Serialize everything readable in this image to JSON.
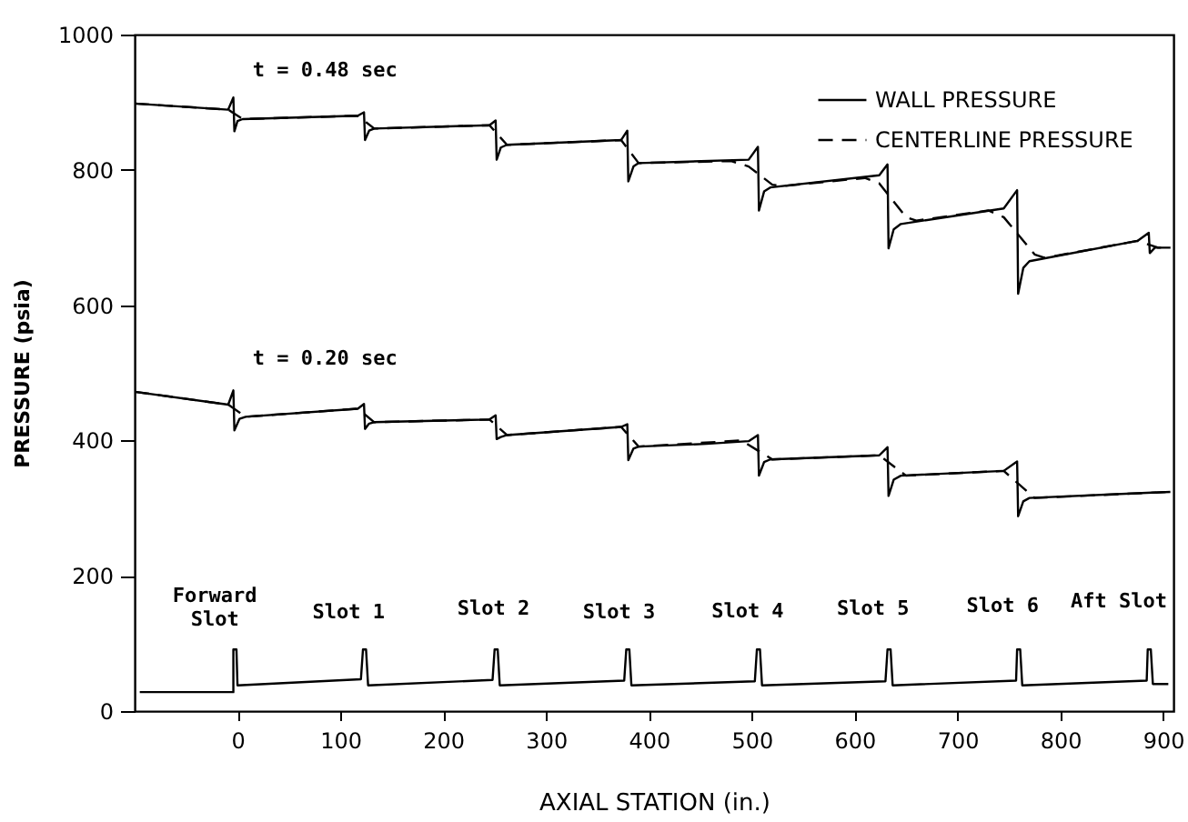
{
  "chart_data": {
    "type": "line",
    "xlabel": "AXIAL STATION  (in.)",
    "ylabel": "PRESSURE (psia)",
    "xlim": [
      -100,
      910
    ],
    "xticks": [
      0,
      100,
      200,
      300,
      400,
      500,
      600,
      700,
      800,
      900
    ],
    "ylim": [
      0,
      1000
    ],
    "yticks": [
      0,
      200,
      400,
      600,
      800,
      1000
    ],
    "grid": false,
    "legend": "top right",
    "marker": "none",
    "series": [
      {
        "name": "WALL PRESSURE",
        "color": "#000000",
        "line_style": "solid",
        "x": [
          -100,
          -9,
          -4,
          -3,
          0,
          5,
          117,
          123,
          124,
          128,
          133,
          245,
          251,
          252,
          256,
          262,
          373,
          379,
          380,
          385,
          390,
          497,
          506,
          507,
          512,
          518,
          624,
          632,
          633,
          638,
          645,
          745,
          758,
          759,
          764,
          770,
          875,
          886,
          887,
          892,
          907
        ],
        "values": [
          898,
          889,
          907,
          857,
          872,
          875,
          880,
          885,
          844,
          858,
          861,
          866,
          873,
          815,
          833,
          837,
          844,
          858,
          783,
          805,
          810,
          815,
          834,
          740,
          768,
          774,
          792,
          808,
          684,
          712,
          720,
          743,
          770,
          617,
          655,
          665,
          695,
          707,
          677,
          685,
          685
        ]
      },
      {
        "name": "CENTERLINE PRESSURE",
        "color": "#000000",
        "line_style": "dashed",
        "x": [
          -100,
          -9,
          5,
          117,
          133,
          245,
          262,
          373,
          390,
          480,
          497,
          520,
          530,
          610,
          624,
          650,
          660,
          730,
          745,
          775,
          785,
          875,
          895,
          907
        ],
        "values": [
          898,
          889,
          875,
          880,
          861,
          866,
          837,
          844,
          810,
          813,
          805,
          778,
          776,
          788,
          780,
          730,
          725,
          740,
          730,
          675,
          670,
          695,
          685,
          685
        ]
      },
      {
        "color": "#000000",
        "line_style": "solid",
        "x": [
          -100,
          -9,
          -4,
          -3,
          2,
          8,
          117,
          123,
          124,
          128,
          133,
          245,
          251,
          252,
          256,
          262,
          373,
          379,
          380,
          385,
          390,
          456,
          497,
          506,
          507,
          512,
          518,
          624,
          632,
          633,
          638,
          645,
          745,
          758,
          759,
          764,
          770,
          907
        ],
        "values": [
          472,
          453,
          474,
          415,
          432,
          435,
          447,
          454,
          417,
          425,
          427,
          431,
          437,
          402,
          405,
          408,
          420,
          424,
          371,
          388,
          391,
          395,
          399,
          408,
          348,
          368,
          372,
          378,
          390,
          318,
          342,
          348,
          355,
          369,
          288,
          310,
          315,
          324
        ]
      },
      {
        "color": "#000000",
        "line_style": "dashed",
        "x": [
          -100,
          -9,
          8,
          117,
          133,
          245,
          262,
          373,
          390,
          490,
          520,
          624,
          650,
          745,
          775,
          907
        ],
        "values": [
          472,
          453,
          435,
          447,
          427,
          431,
          408,
          420,
          391,
          400,
          372,
          378,
          348,
          355,
          315,
          324
        ]
      },
      {
        "color": "#000000",
        "line_style": "solid",
        "x": [
          -95,
          -4,
          -4,
          -1,
          0,
          120,
          122,
          125,
          127,
          248,
          250,
          253,
          255,
          376,
          378,
          381,
          383,
          503,
          505,
          508,
          510,
          630,
          632,
          635,
          637,
          757,
          758,
          761,
          763,
          884,
          885,
          888,
          890,
          905
        ],
        "values": [
          28,
          28,
          91,
          91,
          38,
          47,
          91,
          91,
          38,
          46,
          91,
          91,
          38,
          45,
          91,
          91,
          38,
          44,
          91,
          91,
          38,
          44,
          91,
          91,
          38,
          45,
          91,
          91,
          38,
          45,
          91,
          91,
          40,
          40
        ]
      }
    ],
    "annotations": [
      "t = 0.48 sec",
      "t = 0.20 sec",
      "Forward\nSlot",
      "Slot 1",
      "Slot 2",
      "Slot 3",
      "Slot 4",
      "Slot 5",
      "Slot 6",
      "Aft Slot"
    ]
  }
}
